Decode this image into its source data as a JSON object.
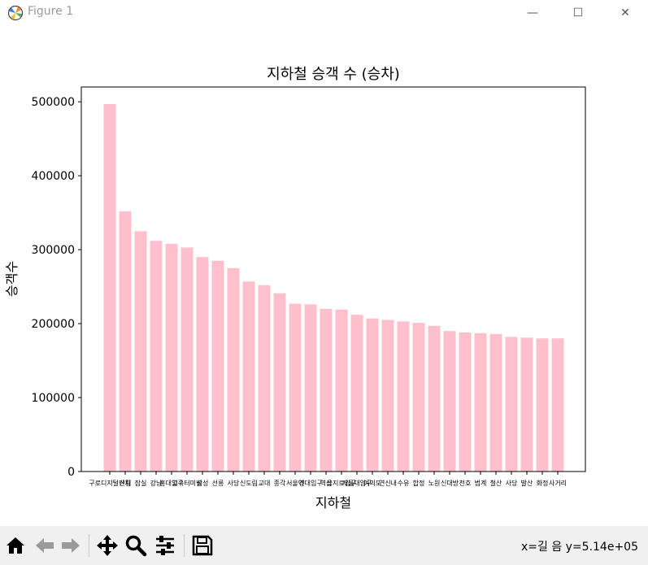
{
  "window": {
    "title": "Figure 1",
    "minimize_label": "—",
    "maximize_label": "☐",
    "close_label": "✕"
  },
  "toolbar": {
    "buttons": [
      "home-icon",
      "back-icon",
      "forward-icon",
      "pan-icon",
      "zoom-icon",
      "configure-subplots-icon",
      "save-icon"
    ],
    "coords_text": "x=길 음  y=5.14e+05"
  },
  "colors": {
    "bar": "#ffc0cb",
    "axis": "#000000",
    "toolbar_bg": "#f0f0f0"
  },
  "chart_data": {
    "type": "bar",
    "title": "지하철 승객 수 (승차)",
    "xlabel": "지하철",
    "ylabel": "승객수",
    "ylim": [
      0,
      520000
    ],
    "yticks": [
      0,
      100000,
      200000,
      300000,
      400000,
      500000
    ],
    "categories": [
      "구로디지털단지",
      "신림",
      "잠실",
      "강남",
      "홍대입구",
      "고속터미널",
      "삼성",
      "선릉",
      "사당",
      "신도림",
      "교대",
      "종각",
      "서울역",
      "건대입구",
      "역삼",
      "을지로입구",
      "서울대입구",
      "여의도",
      "연신내",
      "수유",
      "합정",
      "노원",
      "신대방",
      "천호",
      "범계",
      "철산",
      "사당",
      "발산",
      "화정",
      "사거리"
    ],
    "tick_labels": [
      "구로디지털단지",
      "신림",
      "잠실",
      "강남",
      "홍대입구",
      "고속터미널",
      "삼성",
      "선릉",
      "사당",
      "신도림",
      "교대",
      "종각",
      "서울역",
      "건대입구",
      "역삼",
      "을지로입구",
      "서울대입구",
      "여의도",
      "연신내",
      "수유",
      "합정",
      "노원",
      "신대방",
      "천호",
      "범계",
      "철산",
      "사당",
      "발산",
      "화정",
      "사거리"
    ],
    "values": [
      497000,
      352000,
      325000,
      312000,
      308000,
      303000,
      290000,
      285000,
      275000,
      257000,
      252000,
      241000,
      227000,
      226000,
      220000,
      219000,
      212000,
      207000,
      205000,
      203000,
      201000,
      197000,
      190000,
      188000,
      187000,
      186000,
      182000,
      181000,
      180000,
      180000
    ],
    "grid": false
  }
}
